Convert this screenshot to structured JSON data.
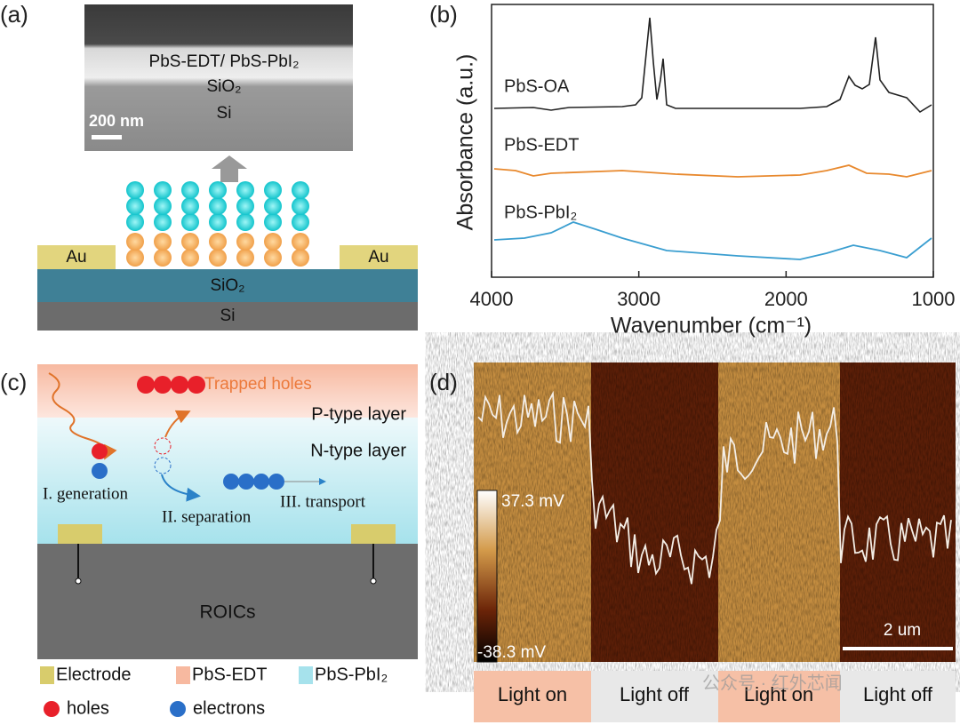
{
  "panel_a": {
    "label": "(a)",
    "sem": {
      "film": "PbS-EDT/ PbS-PbI₂",
      "oxide": "SiO₂",
      "substrate": "Si",
      "scale": "200 nm"
    },
    "device": {
      "left_pad": "Au",
      "right_pad": "Au",
      "oxide": "SiO₂",
      "substrate": "Si"
    }
  },
  "panel_b": {
    "label": "(b)",
    "y_label": "Absorbance (a.u.)",
    "x_label": "Wavenumber (cm⁻¹)",
    "xticks": [
      4000,
      3000,
      2000,
      1000
    ],
    "spectra": [
      "PbS-OA",
      "PbS-EDT",
      "PbS-PbI₂"
    ]
  },
  "panel_c": {
    "label": "(c)",
    "trapped": "Trapped holes",
    "p_layer": "P-type layer",
    "n_layer": "N-type layer",
    "steps": [
      "I. generation",
      "II. separation",
      "III. transport"
    ],
    "readout": "ROICs",
    "legend": [
      "Electrode",
      "PbS-EDT",
      "PbS-PbI₂",
      "holes",
      "electrons"
    ]
  },
  "panel_d": {
    "label": "(d)",
    "cbar_max": "37.3 mV",
    "cbar_min": "-38.3 mV",
    "scale": "2 um",
    "states": [
      "Light on",
      "Light off",
      "Light on",
      "Light off"
    ],
    "watermark": "公众号 · 红外芯闻"
  }
}
